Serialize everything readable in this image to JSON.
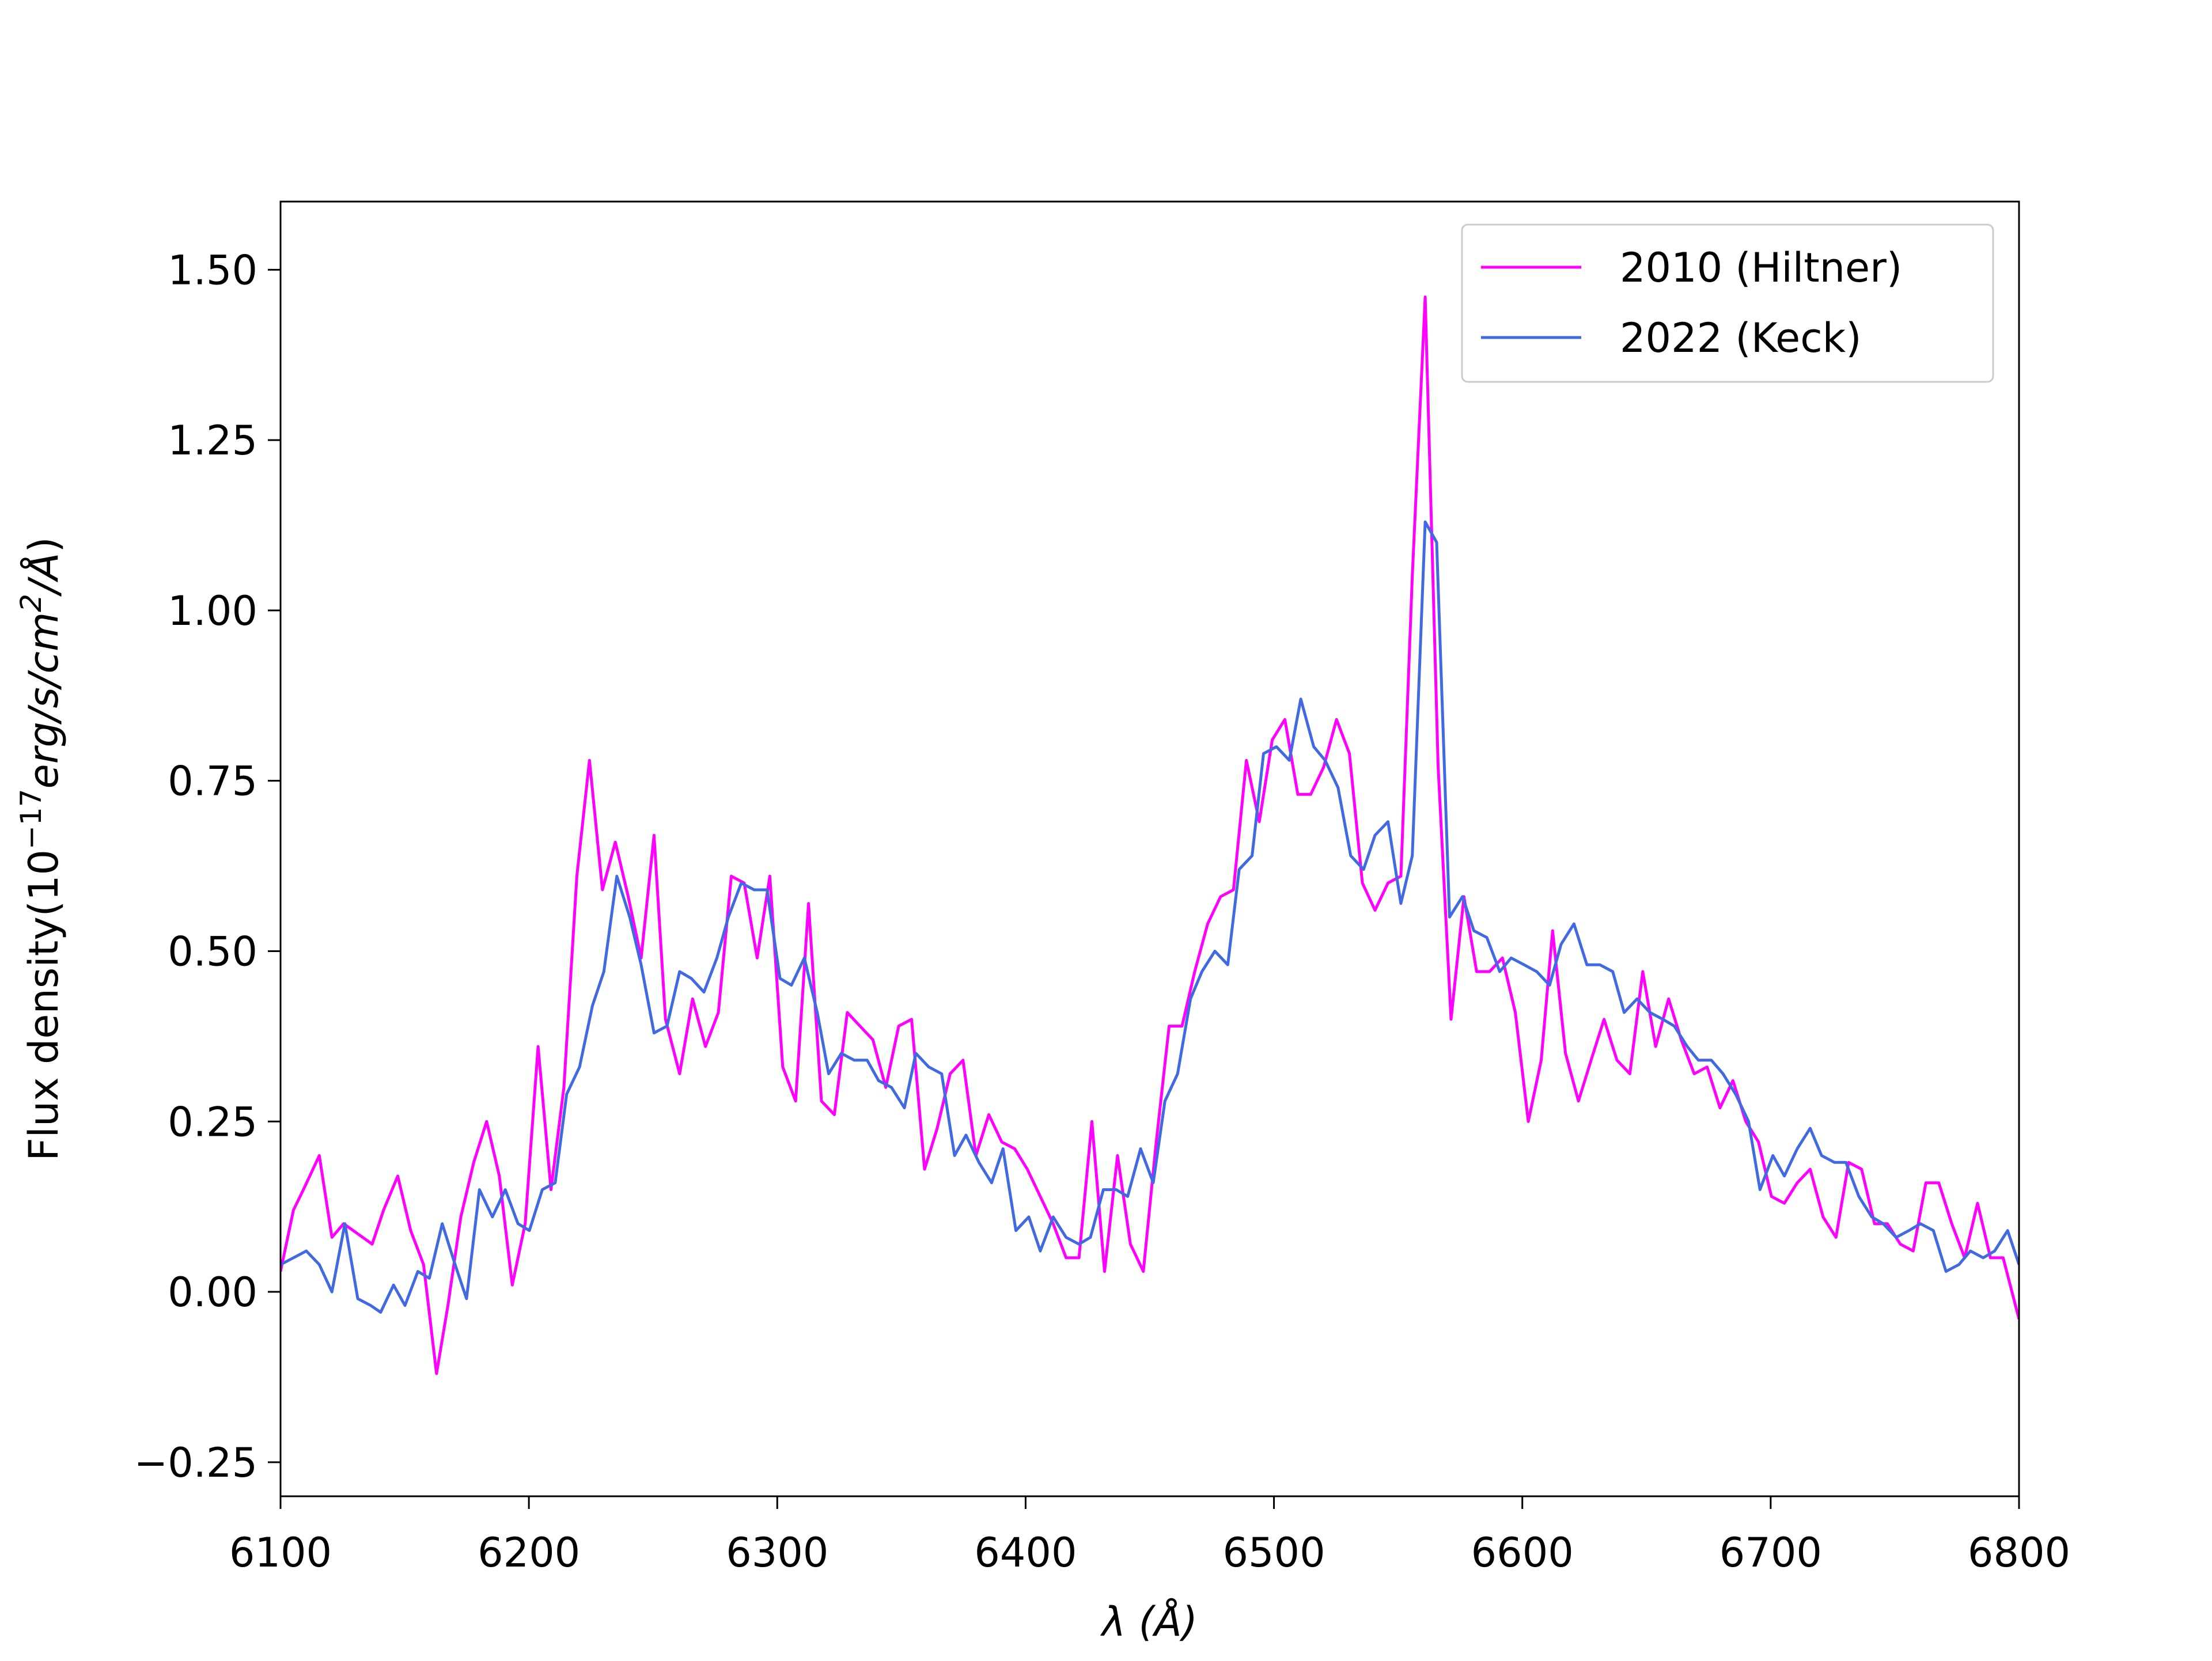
{
  "chart_data": {
    "type": "line",
    "xlabel": "λ (Å)",
    "ylabel": [
      "Flux density(10",
      "−17",
      "erg/s/cm",
      "2",
      "/Å",
      ")"
    ],
    "xlim": [
      6100,
      6800
    ],
    "ylim": [
      -0.3,
      1.6
    ],
    "xticks": [
      6100,
      6200,
      6300,
      6400,
      6500,
      6600,
      6700,
      6800
    ],
    "yticks": [
      {
        "value": -0.25,
        "label": "−0.25"
      },
      {
        "value": 0,
        "label": "0.00"
      },
      {
        "value": 0.25,
        "label": "0.25"
      },
      {
        "value": 0.5,
        "label": "0.50"
      },
      {
        "value": 0.75,
        "label": "0.75"
      },
      {
        "value": 1,
        "label": "1.00"
      },
      {
        "value": 1.25,
        "label": "1.25"
      },
      {
        "value": 1.5,
        "label": "1.50"
      }
    ],
    "legend": "upper right",
    "series": [
      {
        "name": "2010 (Hiltner)",
        "color": "#ff00ff",
        "x": [
          6100,
          6105.2,
          6109.2,
          6115.6,
          6120.7,
          6125.4,
          6136.9,
          6141.5,
          6147.2,
          6152.4,
          6157.6,
          6162.8,
          6167.4,
          6172.6,
          6177.8,
          6183,
          6188.1,
          6193.3,
          6198.5,
          6203.7,
          6208.9,
          6214.1,
          6219.3,
          6224.4,
          6229.6,
          6234.8,
          6240,
          6245.2,
          6250.4,
          6255,
          6260.7,
          6265.9,
          6271.1,
          6276.3,
          6281.5,
          6286.7,
          6291.9,
          6297,
          6302.2,
          6307.4,
          6312.6,
          6317.8,
          6323,
          6328.2,
          6333.3,
          6338.5,
          6343.7,
          6348.9,
          6354.1,
          6359.3,
          6364.4,
          6369.6,
          6374.8,
          6380,
          6385.2,
          6390.4,
          6395.6,
          6400.7,
          6405.9,
          6411.1,
          6416.3,
          6421.5,
          6426.7,
          6431.8,
          6437,
          6442.2,
          6447.4,
          6452.6,
          6457.8,
          6463,
          6468.1,
          6473.3,
          6478.5,
          6483.7,
          6488.9,
          6494.1,
          6499.3,
          6504.4,
          6509.6,
          6514.8,
          6520,
          6525.2,
          6530.4,
          6535.6,
          6540.7,
          6545.9,
          6551.1,
          6555.7,
          6560.9,
          6566.1,
          6571.3,
          6576.5,
          6581.6,
          6586.8,
          6592,
          6597.2,
          6602.4,
          6607.6,
          6612.2,
          6617.4,
          6622.6,
          6627.7,
          6632.9,
          6638.1,
          6643.3,
          6648.5,
          6653.7,
          6658.9,
          6664,
          6669.2,
          6674.4,
          6679.6,
          6684.8,
          6690,
          6695.1,
          6700.3,
          6705.5,
          6710.7,
          6715.9,
          6721.1,
          6726.3,
          6731.4,
          6736.6,
          6741.8,
          6747,
          6752.2,
          6757.4,
          6762.5,
          6767.7,
          6772.9,
          6778.1,
          6783.3,
          6788.5,
          6793.6,
          6800
        ],
        "values": [
          0.03,
          0.12,
          0.15,
          0.2,
          0.08,
          0.1,
          0.07,
          0.12,
          0.17,
          0.09,
          0.04,
          -0.12,
          -0.02,
          0.11,
          0.19,
          0.25,
          0.17,
          0.01,
          0.1,
          0.36,
          0.15,
          0.3,
          0.61,
          0.78,
          0.59,
          0.66,
          0.58,
          0.49,
          0.67,
          0.4,
          0.32,
          0.43,
          0.36,
          0.41,
          0.61,
          0.6,
          0.49,
          0.61,
          0.33,
          0.28,
          0.57,
          0.28,
          0.26,
          0.41,
          0.39,
          0.37,
          0.3,
          0.39,
          0.4,
          0.18,
          0.24,
          0.32,
          0.34,
          0.2,
          0.26,
          0.22,
          0.21,
          0.18,
          0.14,
          0.1,
          0.05,
          0.05,
          0.25,
          0.03,
          0.2,
          0.07,
          0.03,
          0.22,
          0.39,
          0.39,
          0.47,
          0.54,
          0.58,
          0.59,
          0.78,
          0.69,
          0.81,
          0.84,
          0.73,
          0.73,
          0.77,
          0.84,
          0.79,
          0.6,
          0.56,
          0.6,
          0.61,
          1.05,
          1.46,
          0.77,
          0.4,
          0.58,
          0.47,
          0.47,
          0.49,
          0.41,
          0.25,
          0.34,
          0.53,
          0.35,
          0.28,
          0.34,
          0.4,
          0.34,
          0.32,
          0.47,
          0.36,
          0.43,
          0.37,
          0.32,
          0.33,
          0.27,
          0.31,
          0.25,
          0.22,
          0.14,
          0.13,
          0.16,
          0.18,
          0.11,
          0.08,
          0.19,
          0.18,
          0.1,
          0.1,
          0.07,
          0.06,
          0.16,
          0.16,
          0.1,
          0.05,
          0.13,
          0.05,
          0.05,
          -0.04
        ]
      },
      {
        "name": "2022 (Keck)",
        "color": "#4169e1",
        "x": [
          6100,
          6105.2,
          6110.4,
          6115.6,
          6120.7,
          6125.9,
          6131.1,
          6136.3,
          6140.3,
          6145.5,
          6150.1,
          6155.3,
          6159.9,
          6165.1,
          6170.3,
          6174.9,
          6180.1,
          6185.3,
          6190.5,
          6195.6,
          6200.2,
          6205.4,
          6210.6,
          6215.2,
          6220.4,
          6225.6,
          6230.2,
          6235.4,
          6240.6,
          6245.2,
          6250.4,
          6255.6,
          6260.7,
          6265.4,
          6270.5,
          6275.7,
          6280.3,
          6285.5,
          6290.7,
          6295.9,
          6301.1,
          6305.7,
          6310.9,
          6316.1,
          6320.7,
          6325.8,
          6331,
          6336.2,
          6340.8,
          6346,
          6351.2,
          6355.8,
          6361,
          6366.2,
          6371.4,
          6376,
          6381.2,
          6386.3,
          6390.9,
          6396.1,
          6401.3,
          6405.9,
          6411.1,
          6416.3,
          6421.5,
          6426.1,
          6431.3,
          6436.5,
          6441.1,
          6446.3,
          6451.4,
          6456.1,
          6461.2,
          6466.4,
          6471,
          6476.2,
          6481.4,
          6486,
          6491.2,
          6495.8,
          6501,
          6506.2,
          6510.8,
          6516,
          6520.6,
          6525.8,
          6530.9,
          6536.1,
          6540.7,
          6545.9,
          6551.1,
          6555.7,
          6560.9,
          6565.5,
          6570.7,
          6575.9,
          6580.5,
          6585.7,
          6590.9,
          6595.5,
          6600.7,
          6605.8,
          6611,
          6615.6,
          6620.8,
          6626,
          6631.2,
          6636.4,
          6641,
          6646.2,
          6651.4,
          6656.6,
          6661.2,
          6666.4,
          6670.9,
          6676.1,
          6680.8,
          6685.9,
          6691.1,
          6695.7,
          6700.9,
          6705.5,
          6710.7,
          6715.9,
          6720.5,
          6725.7,
          6730.3,
          6735.5,
          6740.7,
          6745.3,
          6750.5,
          6755.7,
          6760.3,
          6765.5,
          6770.6,
          6775.8,
          6780.4,
          6785.6,
          6790.2,
          6795.4,
          6800
        ],
        "values": [
          0.04,
          0.05,
          0.06,
          0.04,
          0,
          0.1,
          -0.01,
          -0.02,
          -0.03,
          0.01,
          -0.02,
          0.03,
          0.02,
          0.1,
          0.04,
          -0.01,
          0.15,
          0.11,
          0.15,
          0.1,
          0.09,
          0.15,
          0.16,
          0.29,
          0.33,
          0.42,
          0.47,
          0.61,
          0.55,
          0.48,
          0.38,
          0.39,
          0.47,
          0.46,
          0.44,
          0.49,
          0.55,
          0.6,
          0.59,
          0.59,
          0.46,
          0.45,
          0.49,
          0.41,
          0.32,
          0.35,
          0.34,
          0.34,
          0.31,
          0.3,
          0.27,
          0.35,
          0.33,
          0.32,
          0.2,
          0.23,
          0.19,
          0.16,
          0.21,
          0.09,
          0.11,
          0.06,
          0.11,
          0.08,
          0.07,
          0.08,
          0.15,
          0.15,
          0.14,
          0.21,
          0.16,
          0.28,
          0.32,
          0.43,
          0.47,
          0.5,
          0.48,
          0.62,
          0.64,
          0.79,
          0.8,
          0.78,
          0.87,
          0.8,
          0.78,
          0.74,
          0.64,
          0.62,
          0.67,
          0.69,
          0.57,
          0.64,
          1.13,
          1.1,
          0.55,
          0.58,
          0.53,
          0.52,
          0.47,
          0.49,
          0.48,
          0.47,
          0.45,
          0.51,
          0.54,
          0.48,
          0.48,
          0.47,
          0.41,
          0.43,
          0.41,
          0.4,
          0.39,
          0.36,
          0.34,
          0.34,
          0.32,
          0.29,
          0.25,
          0.15,
          0.2,
          0.17,
          0.21,
          0.24,
          0.2,
          0.19,
          0.19,
          0.14,
          0.11,
          0.1,
          0.08,
          0.09,
          0.1,
          0.09,
          0.03,
          0.04,
          0.06,
          0.05,
          0.06,
          0.09,
          0.04
        ]
      }
    ]
  }
}
